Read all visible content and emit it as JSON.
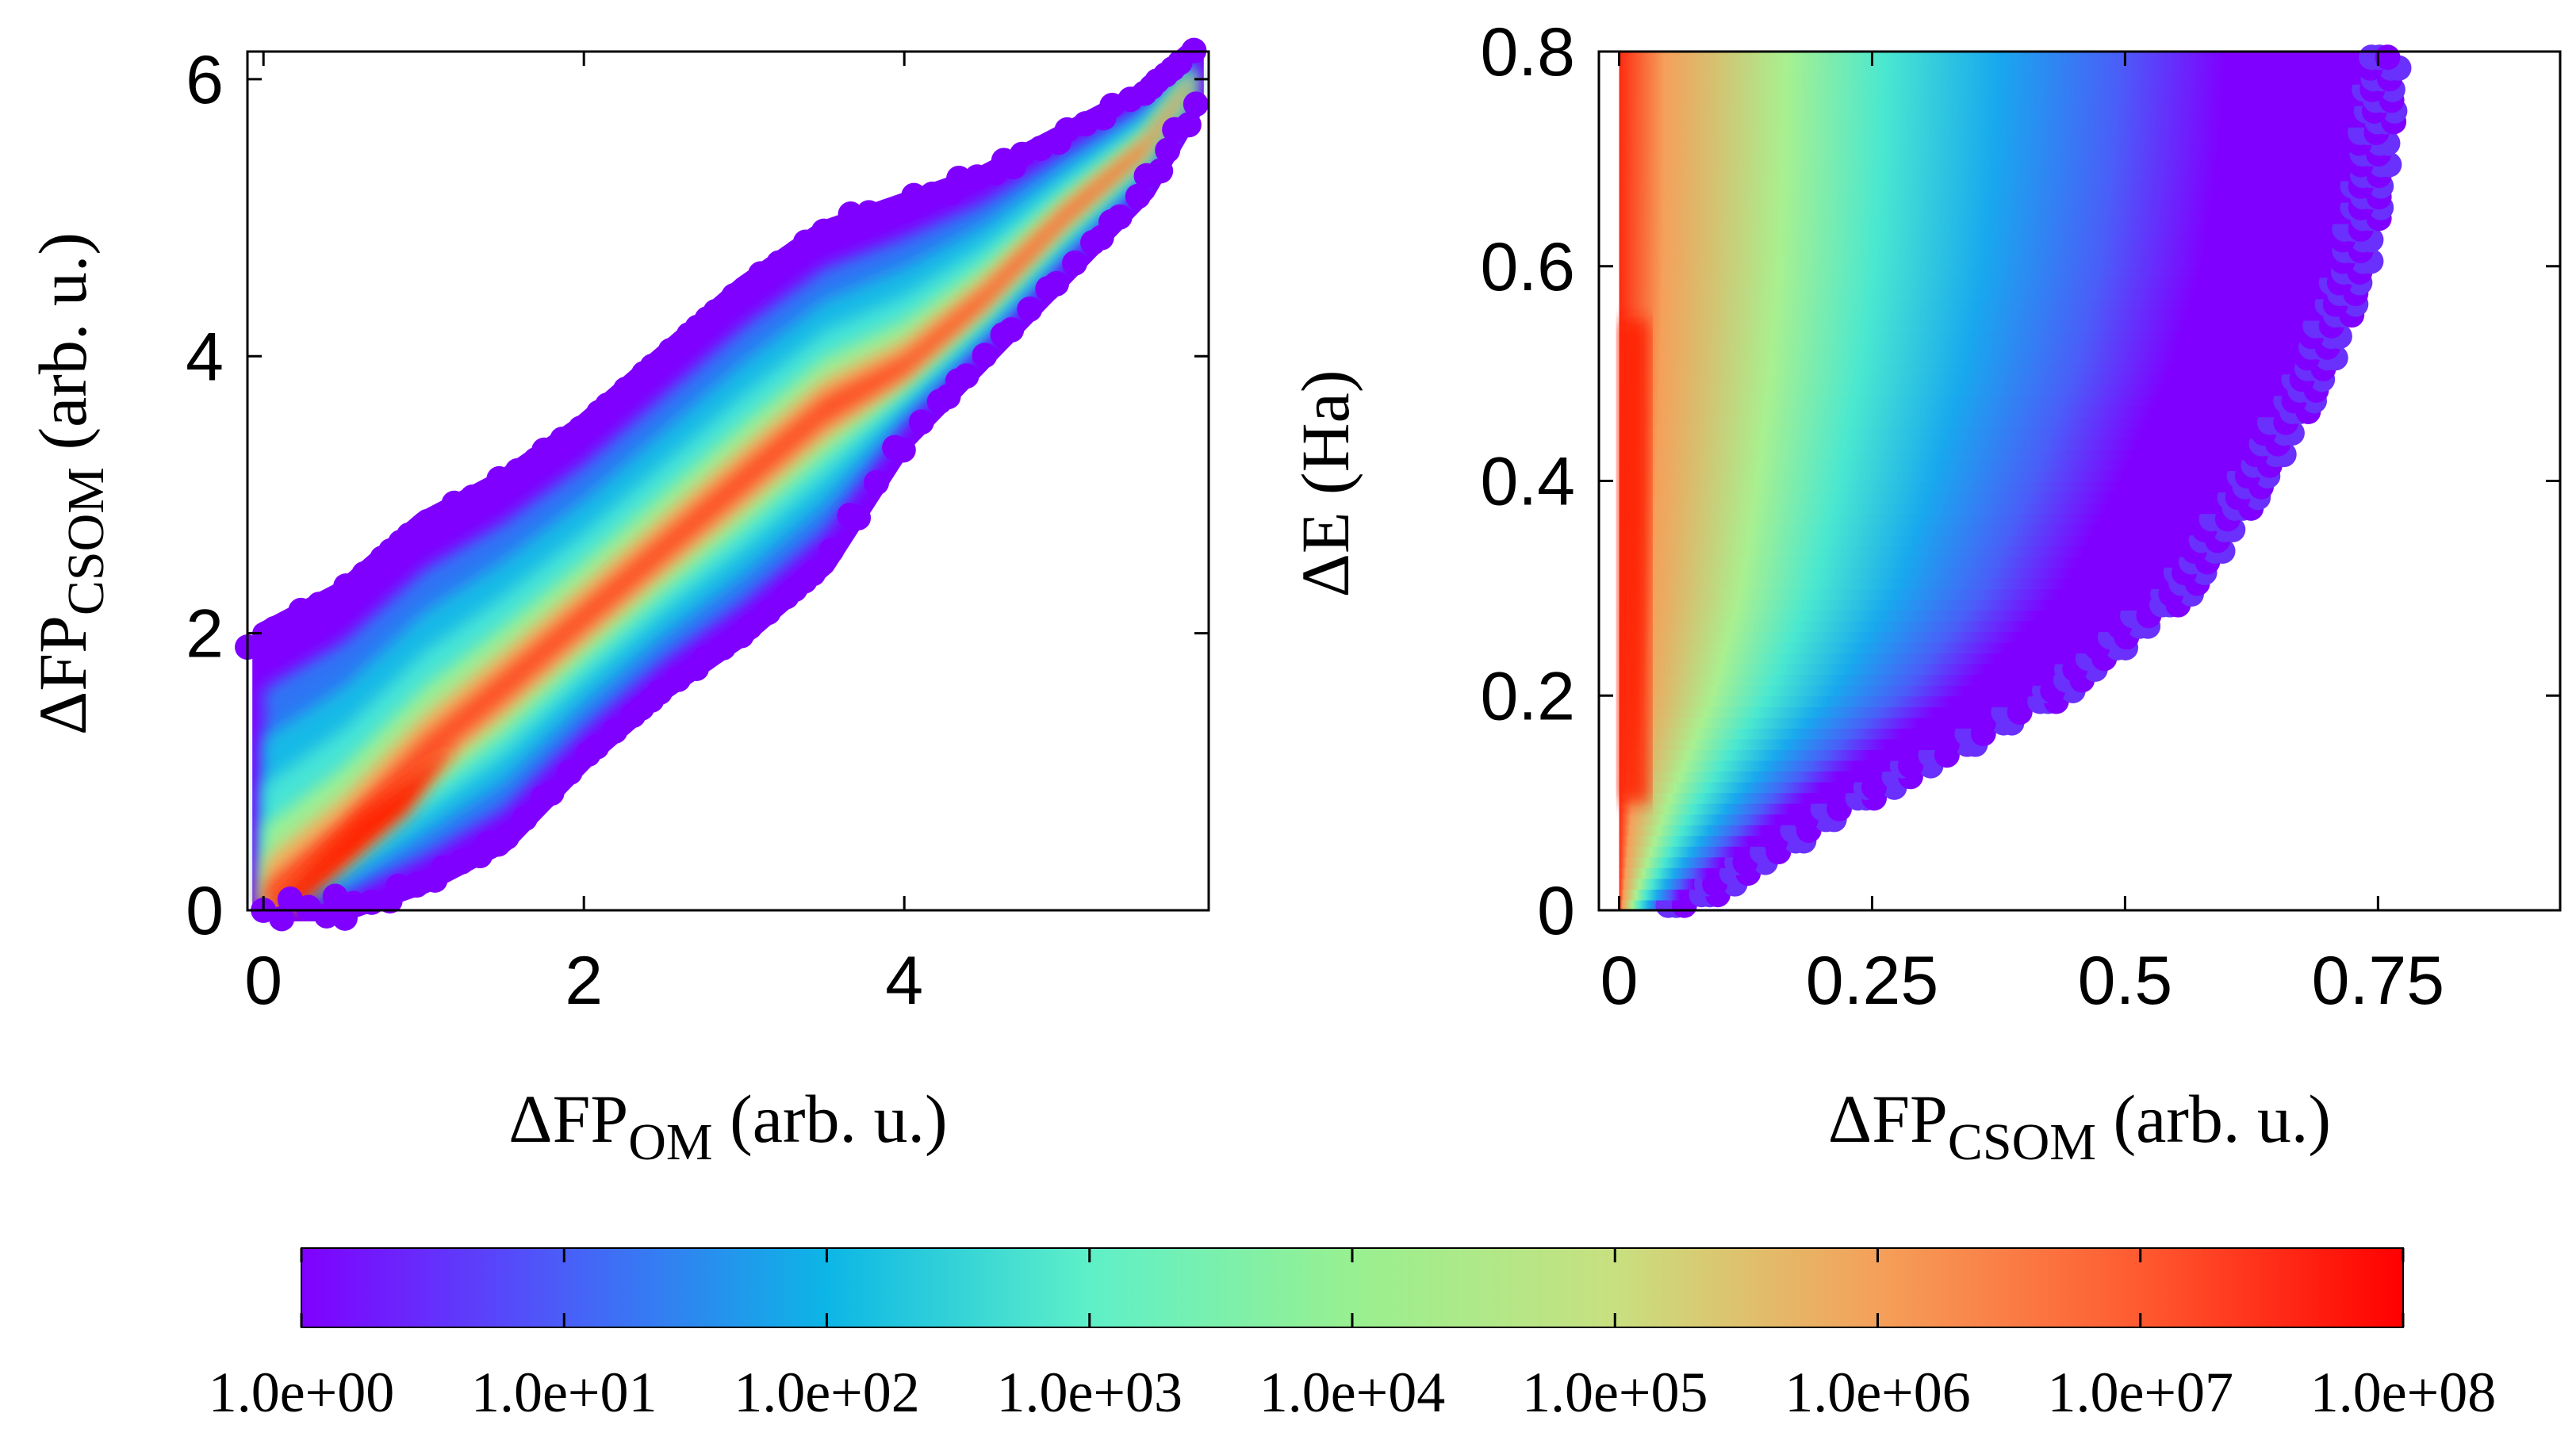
{
  "chart_data": [
    {
      "type": "heatmap",
      "name": "left-panel",
      "xlabel": {
        "main": "ΔFP",
        "sub": "OM",
        "suffix": " (arb. u.)"
      },
      "ylabel": {
        "main": "ΔFP",
        "sub": "CSOM",
        "suffix": " (arb. u.)"
      },
      "xlim": [
        -0.1,
        5.9
      ],
      "ylim": [
        0,
        6.2
      ],
      "xticks": [
        0,
        2,
        4
      ],
      "xtick_labels": [
        "0",
        "2",
        "4"
      ],
      "yticks": [
        0,
        2,
        4,
        6
      ],
      "ytick_labels": [
        "0",
        "2",
        "4",
        "6"
      ],
      "density_ridge": {
        "x": [
          0.0,
          0.5,
          1.0,
          1.5,
          2.0,
          2.5,
          3.0,
          3.5,
          4.0,
          4.5,
          5.0,
          5.5,
          5.8
        ],
        "y_center": [
          0.0,
          0.5,
          1.1,
          1.6,
          2.1,
          2.6,
          3.1,
          3.6,
          3.9,
          4.4,
          5.0,
          5.5,
          6.0
        ],
        "y_upper": [
          2.0,
          2.3,
          2.8,
          3.1,
          3.5,
          4.0,
          4.5,
          4.9,
          5.1,
          5.3,
          5.6,
          5.9,
          6.2
        ],
        "y_lower": [
          0.0,
          0.0,
          0.2,
          0.5,
          1.1,
          1.6,
          2.0,
          2.5,
          3.4,
          4.0,
          4.6,
          5.2,
          5.8
        ]
      }
    },
    {
      "type": "heatmap",
      "name": "right-panel",
      "xlabel": {
        "main": "ΔFP",
        "sub": "CSOM",
        "suffix": " (arb. u.)"
      },
      "ylabel": {
        "main": "ΔE (Ha)",
        "sub": "",
        "suffix": ""
      },
      "xlim": [
        -0.02,
        0.93
      ],
      "ylim": [
        0,
        0.8
      ],
      "xticks": [
        0,
        0.25,
        0.5,
        0.75
      ],
      "xtick_labels": [
        "0",
        "0.25",
        "0.5",
        "0.75"
      ],
      "yticks": [
        0,
        0.2,
        0.4,
        0.6,
        0.8
      ],
      "ytick_labels": [
        "0",
        "0.2",
        "0.4",
        "0.6",
        "0.8"
      ],
      "density_bands": {
        "x_log10_count_at_dE_0.3": [
          [
            0.0,
            7.3
          ],
          [
            0.05,
            6.0
          ],
          [
            0.1,
            5.0
          ],
          [
            0.2,
            4.0
          ],
          [
            0.3,
            3.0
          ],
          [
            0.4,
            2.0
          ],
          [
            0.5,
            1.0
          ],
          [
            0.6,
            0.0
          ]
        ],
        "upper_x_extent": {
          "dE": [
            0.0,
            0.1,
            0.2,
            0.3,
            0.4,
            0.5,
            0.6,
            0.7,
            0.8
          ],
          "x": [
            0.05,
            0.22,
            0.42,
            0.55,
            0.62,
            0.68,
            0.72,
            0.74,
            0.75
          ]
        }
      }
    }
  ],
  "colorbar": {
    "scale": "log",
    "min_exp": 0,
    "max_exp": 8,
    "tick_labels": [
      "1.0e+00",
      "1.0e+01",
      "1.0e+02",
      "1.0e+03",
      "1.0e+04",
      "1.0e+05",
      "1.0e+06",
      "1.0e+07",
      "1.0e+08"
    ],
    "colors": [
      "#8000ff",
      "#4a5ef8",
      "#0cb6e6",
      "#5ef0c8",
      "#98f090",
      "#c8e080",
      "#f5a05a",
      "#ff5a30",
      "#ff0000"
    ]
  }
}
